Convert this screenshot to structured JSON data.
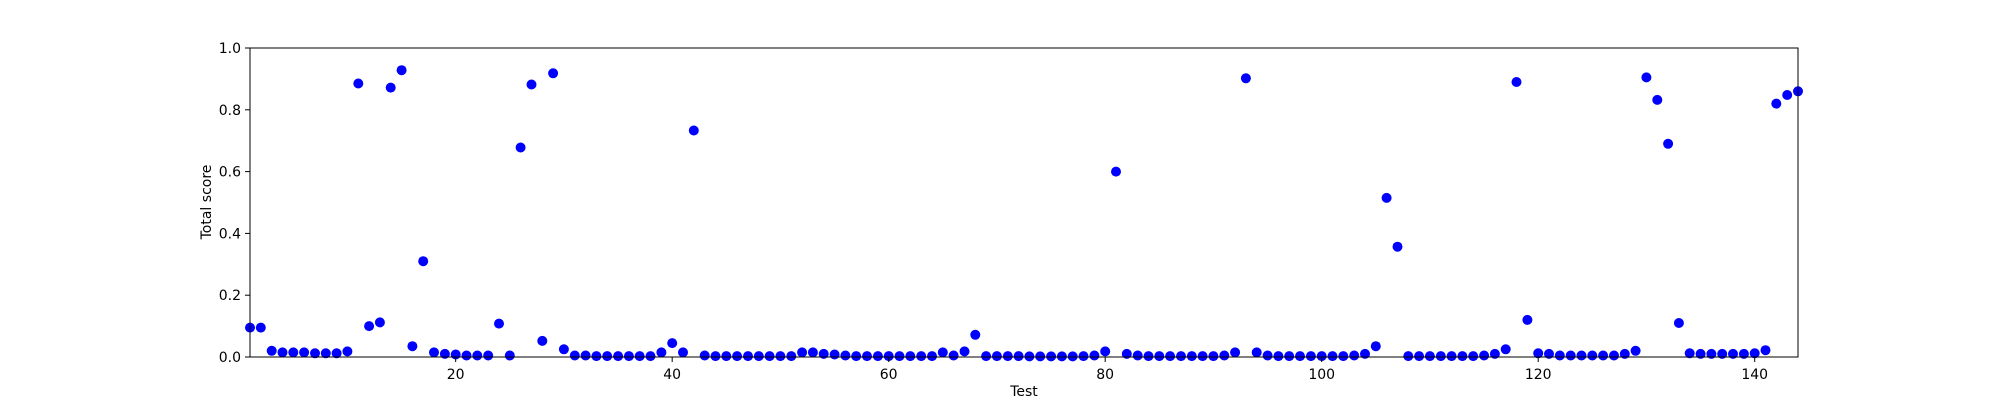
{
  "chart_data": {
    "type": "scatter",
    "title": "",
    "xlabel": "Test",
    "ylabel": "Total score",
    "xlim": [
      1,
      144
    ],
    "ylim": [
      0,
      1.0
    ],
    "xticks": [
      20,
      40,
      60,
      80,
      100,
      120,
      140
    ],
    "yticks": [
      0.0,
      0.2,
      0.4,
      0.6,
      0.8,
      1.0
    ],
    "xtick_labels": [
      "20",
      "40",
      "60",
      "80",
      "100",
      "120",
      "140"
    ],
    "ytick_labels": [
      "0.0",
      "0.2",
      "0.4",
      "0.6",
      "0.8",
      "1.0"
    ],
    "grid": false,
    "marker_color": "#0000ff",
    "series": [
      {
        "x": [
          1,
          2,
          3,
          4,
          5,
          6,
          7,
          8,
          9,
          10,
          11,
          12,
          13,
          14,
          15,
          16,
          17,
          18,
          19,
          20,
          21,
          22,
          23,
          24,
          25,
          26,
          27,
          28,
          29,
          30,
          31,
          32,
          33,
          34,
          35,
          36,
          37,
          38,
          39,
          40,
          41,
          42,
          43,
          44,
          45,
          46,
          47,
          48,
          49,
          50,
          51,
          52,
          53,
          54,
          55,
          56,
          57,
          58,
          59,
          60,
          61,
          62,
          63,
          64,
          65,
          66,
          67,
          68,
          69,
          70,
          71,
          72,
          73,
          74,
          75,
          76,
          77,
          78,
          79,
          80,
          81,
          82,
          83,
          84,
          85,
          86,
          87,
          88,
          89,
          90,
          91,
          92,
          93,
          94,
          95,
          96,
          97,
          98,
          99,
          100,
          101,
          102,
          103,
          104,
          105,
          106,
          107,
          108,
          109,
          110,
          111,
          112,
          113,
          114,
          115,
          116,
          117,
          118,
          119,
          120,
          121,
          122,
          123,
          124,
          125,
          126,
          127,
          128,
          129,
          130,
          131,
          132,
          133,
          134,
          135,
          136,
          137,
          138,
          139,
          140,
          141,
          142,
          143,
          144
        ],
        "y": [
          0.095,
          0.095,
          0.02,
          0.015,
          0.015,
          0.015,
          0.012,
          0.012,
          0.012,
          0.018,
          0.885,
          0.1,
          0.112,
          0.872,
          0.928,
          0.035,
          0.31,
          0.015,
          0.01,
          0.008,
          0.005,
          0.005,
          0.005,
          0.108,
          0.005,
          0.678,
          0.882,
          0.052,
          0.918,
          0.025,
          0.005,
          0.005,
          0.003,
          0.003,
          0.003,
          0.003,
          0.003,
          0.003,
          0.015,
          0.045,
          0.015,
          0.733,
          0.005,
          0.003,
          0.003,
          0.003,
          0.003,
          0.003,
          0.003,
          0.003,
          0.003,
          0.015,
          0.015,
          0.01,
          0.008,
          0.005,
          0.003,
          0.003,
          0.003,
          0.003,
          0.003,
          0.003,
          0.003,
          0.003,
          0.015,
          0.005,
          0.018,
          0.072,
          0.003,
          0.003,
          0.003,
          0.003,
          0.002,
          0.002,
          0.002,
          0.002,
          0.002,
          0.003,
          0.005,
          0.018,
          0.6,
          0.01,
          0.005,
          0.003,
          0.003,
          0.003,
          0.003,
          0.003,
          0.003,
          0.003,
          0.005,
          0.015,
          0.902,
          0.015,
          0.005,
          0.003,
          0.003,
          0.003,
          0.003,
          0.003,
          0.003,
          0.003,
          0.005,
          0.01,
          0.035,
          0.515,
          0.357,
          0.003,
          0.003,
          0.003,
          0.003,
          0.003,
          0.003,
          0.003,
          0.005,
          0.01,
          0.025,
          0.89,
          0.12,
          0.012,
          0.01,
          0.005,
          0.005,
          0.005,
          0.005,
          0.005,
          0.005,
          0.01,
          0.02,
          0.905,
          0.832,
          0.69,
          0.11,
          0.012,
          0.01,
          0.01,
          0.01,
          0.01,
          0.01,
          0.012,
          0.022,
          0.82,
          0.848,
          0.86
        ]
      }
    ]
  }
}
